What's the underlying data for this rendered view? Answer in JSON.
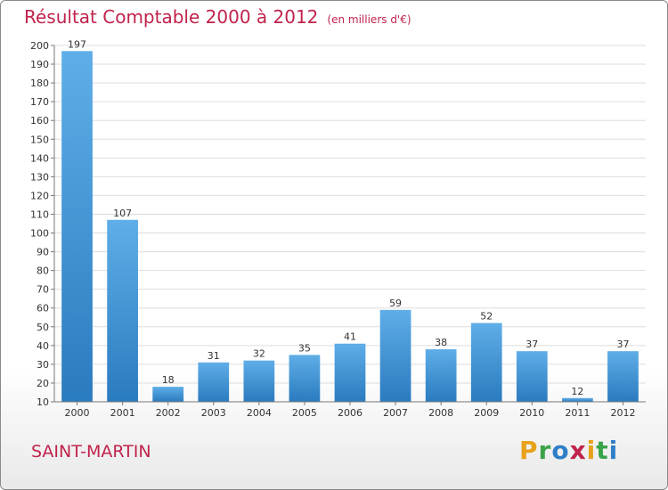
{
  "header": {
    "title": "Résultat Comptable 2000 à 2012",
    "subtitle": "(en milliers d'€)"
  },
  "footer": {
    "city": "SAINT-MARTIN",
    "logo_text": "Proxiti",
    "logo_letters": [
      {
        "char": "P",
        "color": "#e8a21a"
      },
      {
        "char": "r",
        "color": "#3aa34a"
      },
      {
        "char": "o",
        "color": "#2f7fc7"
      },
      {
        "char": "x",
        "color": "#c0234b"
      },
      {
        "char": "i",
        "color": "#e8a21a"
      },
      {
        "char": "t",
        "color": "#3aa34a"
      },
      {
        "char": "i",
        "color": "#2f7fc7"
      }
    ]
  },
  "colors": {
    "title": "#c0234b",
    "bar_top": "#5faee8",
    "bar_bottom": "#2a7bbf",
    "grid": "#dddddd"
  },
  "chart_data": {
    "type": "bar",
    "title": "Résultat Comptable 2000 à 2012",
    "subtitle": "(en milliers d'€)",
    "categories": [
      "2000",
      "2001",
      "2002",
      "2003",
      "2004",
      "2005",
      "2006",
      "2007",
      "2008",
      "2009",
      "2010",
      "2011",
      "2012"
    ],
    "values": [
      197,
      107,
      18,
      31,
      32,
      35,
      41,
      59,
      38,
      52,
      37,
      12,
      37
    ],
    "ylim": [
      10,
      200
    ],
    "yticks": [
      10,
      20,
      30,
      40,
      50,
      60,
      70,
      80,
      90,
      100,
      110,
      120,
      130,
      140,
      150,
      160,
      170,
      180,
      190,
      200
    ],
    "grid": true,
    "data_labels": true
  }
}
